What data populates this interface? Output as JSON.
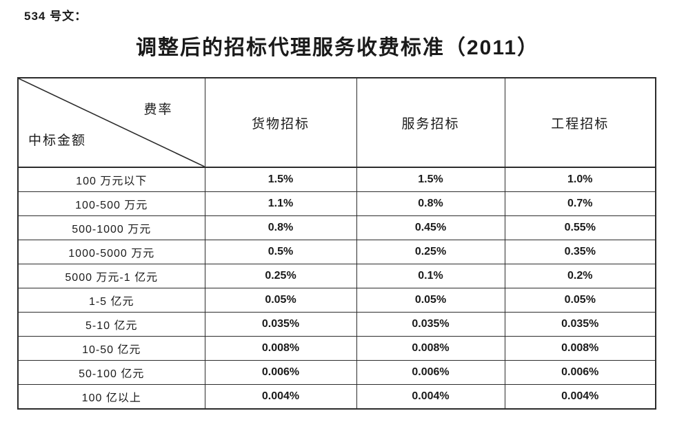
{
  "page": {
    "doc_number": "534 号文：",
    "title": "调整后的招标代理服务收费标准（2011）"
  },
  "table": {
    "corner": {
      "top_right_label": "费率",
      "bottom_left_label": "中标金额"
    },
    "columns": [
      "货物招标",
      "服务招标",
      "工程招标"
    ],
    "rows": [
      [
        "100 万元以下",
        "1.5%",
        "1.5%",
        "1.0%"
      ],
      [
        "100-500 万元",
        "1.1%",
        "0.8%",
        "0.7%"
      ],
      [
        "500-1000 万元",
        "0.8%",
        "0.45%",
        "0.55%"
      ],
      [
        "1000-5000 万元",
        "0.5%",
        "0.25%",
        "0.35%"
      ],
      [
        "5000 万元-1 亿元",
        "0.25%",
        "0.1%",
        "0.2%"
      ],
      [
        "1-5 亿元",
        "0.05%",
        "0.05%",
        "0.05%"
      ],
      [
        "5-10 亿元",
        "0.035%",
        "0.035%",
        "0.035%"
      ],
      [
        "10-50 亿元",
        "0.008%",
        "0.008%",
        "0.008%"
      ],
      [
        "50-100 亿元",
        "0.006%",
        "0.006%",
        "0.006%"
      ],
      [
        "100 亿以上",
        "0.004%",
        "0.004%",
        "0.004%"
      ]
    ]
  },
  "colors": {
    "text": "#1a1a1a",
    "border": "#2b2b2b",
    "background": "#ffffff"
  }
}
